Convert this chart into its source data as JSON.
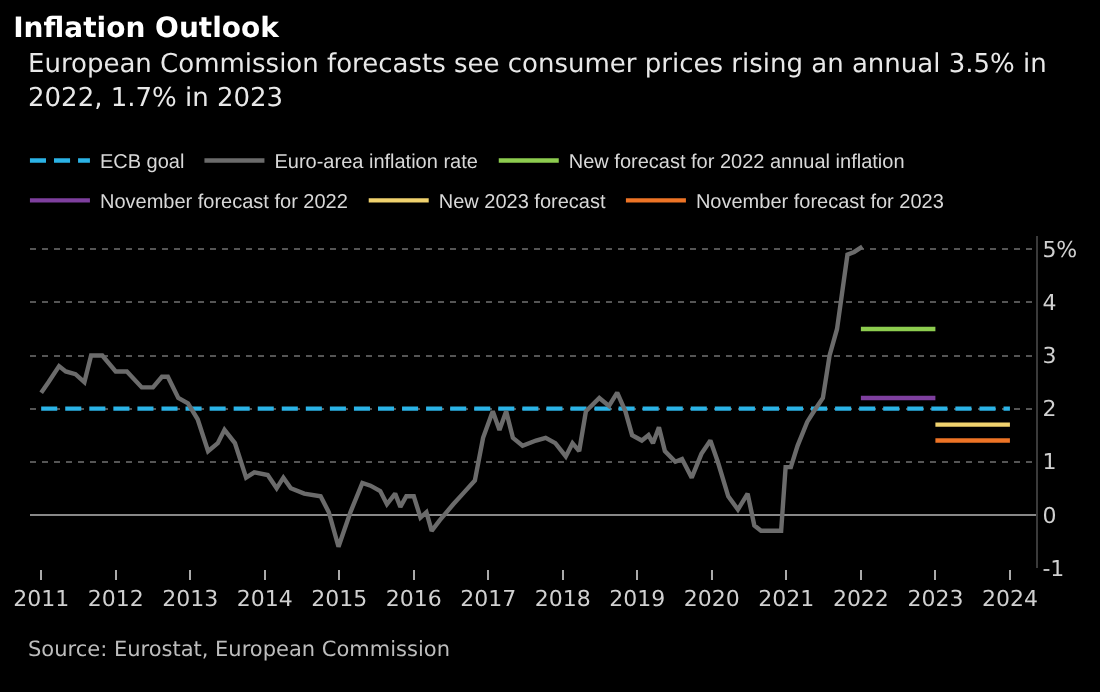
{
  "chart_data": {
    "type": "line",
    "title": "Inflation Outlook",
    "subtitle": "European Commission forecasts see consumer prices rising an annual 3.5% in 2022, 1.7% in 2023",
    "annotations": [
      "Source: Eurostat, European Commission"
    ],
    "xlim": [
      2010.85,
      2024.35
    ],
    "xticks": [
      2011,
      2012,
      2013,
      2014,
      2015,
      2016,
      2017,
      2018,
      2019,
      2020,
      2021,
      2022,
      2023,
      2024
    ],
    "ylim": [
      -1,
      5.25
    ],
    "yticks": [
      {
        "value": -1,
        "label": "-1"
      },
      0,
      1,
      2,
      3,
      4,
      {
        "value": 5,
        "label": "5%"
      }
    ],
    "grid": "y",
    "legend": "top left",
    "marker": "none",
    "series": [
      {
        "name": "ECB goal",
        "color": "#2bb3e6",
        "line_style": "dashed",
        "x": [
          2011,
          2024
        ],
        "values": [
          2,
          2
        ]
      },
      {
        "name": "Euro-area inflation rate",
        "color": "#6b6b6b",
        "line_style": "solid",
        "x": [
          2011.0,
          2011.1,
          2011.24,
          2011.33,
          2011.46,
          2011.58,
          2011.67,
          2011.82,
          2012.0,
          2012.15,
          2012.35,
          2012.5,
          2012.62,
          2012.7,
          2012.84,
          2012.97,
          2013.1,
          2013.24,
          2013.37,
          2013.46,
          2013.6,
          2013.75,
          2013.86,
          2014.04,
          2014.16,
          2014.25,
          2014.35,
          2014.53,
          2014.75,
          2014.86,
          2014.99,
          2015.15,
          2015.31,
          2015.42,
          2015.55,
          2015.64,
          2015.75,
          2015.82,
          2015.9,
          2016.0,
          2016.09,
          2016.17,
          2016.24,
          2016.35,
          2016.53,
          2016.66,
          2016.82,
          2016.93,
          2017.06,
          2017.15,
          2017.24,
          2017.33,
          2017.46,
          2017.64,
          2017.77,
          2017.9,
          2018.04,
          2018.13,
          2018.22,
          2018.31,
          2018.49,
          2018.62,
          2018.73,
          2018.84,
          2018.93,
          2019.06,
          2019.15,
          2019.21,
          2019.29,
          2019.37,
          2019.51,
          2019.6,
          2019.73,
          2019.86,
          2019.98,
          2020.08,
          2020.22,
          2020.35,
          2020.48,
          2020.57,
          2020.66,
          2020.93,
          2020.99,
          2021.06,
          2021.15,
          2021.28,
          2021.37,
          2021.49,
          2021.58,
          2021.68,
          2021.82,
          2021.91,
          2022.02
        ],
        "values": [
          2.3,
          2.5,
          2.8,
          2.7,
          2.65,
          2.5,
          3.0,
          3.0,
          2.7,
          2.7,
          2.4,
          2.4,
          2.6,
          2.6,
          2.2,
          2.1,
          1.8,
          1.2,
          1.35,
          1.6,
          1.35,
          0.7,
          0.8,
          0.75,
          0.5,
          0.7,
          0.5,
          0.4,
          0.35,
          0.05,
          -0.6,
          0.05,
          0.6,
          0.55,
          0.45,
          0.2,
          0.4,
          0.15,
          0.35,
          0.35,
          -0.05,
          0.05,
          -0.3,
          -0.1,
          0.2,
          0.4,
          0.65,
          1.45,
          1.95,
          1.6,
          1.95,
          1.45,
          1.3,
          1.4,
          1.45,
          1.35,
          1.1,
          1.35,
          1.2,
          1.95,
          2.2,
          2.05,
          2.3,
          1.95,
          1.5,
          1.4,
          1.5,
          1.35,
          1.65,
          1.2,
          1.0,
          1.05,
          0.7,
          1.15,
          1.4,
          1.0,
          0.35,
          0.1,
          0.4,
          -0.2,
          -0.3,
          -0.3,
          0.9,
          0.9,
          1.3,
          1.75,
          1.95,
          2.2,
          3.0,
          3.5,
          4.9,
          4.95,
          5.05
        ]
      },
      {
        "name": "New forecast for 2022 annual inflation",
        "color": "#8dcc4f",
        "line_style": "solid",
        "x": [
          2022,
          2023
        ],
        "values": [
          3.5,
          3.5
        ]
      },
      {
        "name": "November forecast for 2022",
        "color": "#7e3f9e",
        "line_style": "solid",
        "x": [
          2022,
          2023
        ],
        "values": [
          2.2,
          2.2
        ]
      },
      {
        "name": "New 2023 forecast",
        "color": "#f0d26e",
        "line_style": "solid",
        "x": [
          2023,
          2024
        ],
        "values": [
          1.7,
          1.7
        ]
      },
      {
        "name": "November forecast for 2023",
        "color": "#ee7426",
        "line_style": "solid",
        "x": [
          2023,
          2024
        ],
        "values": [
          1.4,
          1.4
        ]
      }
    ]
  }
}
